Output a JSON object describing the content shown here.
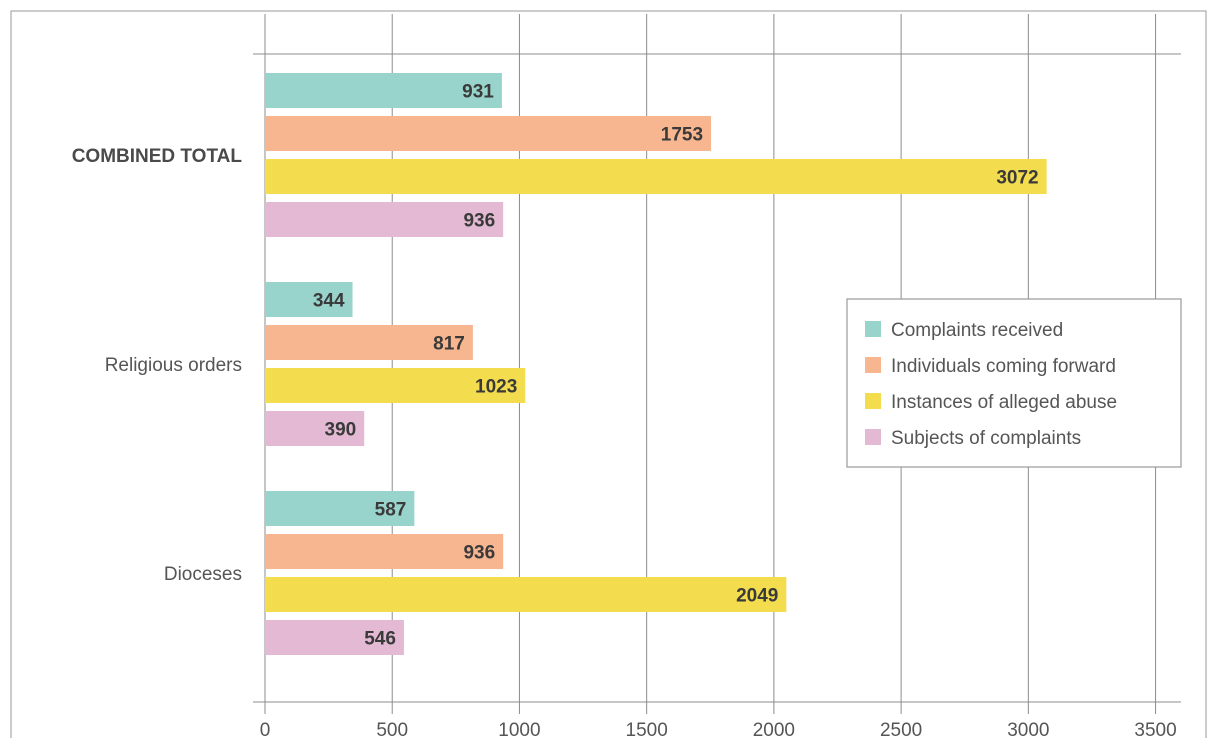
{
  "colors": {
    "complaints_received": "#99d4cc",
    "individuals_coming_forward": "#f7b590",
    "instances_of_alleged_abuse": "#f3dc4e",
    "subjects_of_complaints": "#e3b9d3"
  },
  "chart_data": {
    "type": "bar",
    "orientation": "horizontal",
    "categories": [
      "COMBINED TOTAL",
      "Religious orders",
      "Dioceses"
    ],
    "category_bold": [
      true,
      false,
      false
    ],
    "series": [
      {
        "name": "Complaints received",
        "color": "#99d4cc",
        "values": [
          931,
          344,
          587
        ]
      },
      {
        "name": "Individuals coming forward",
        "color": "#f7b590",
        "values": [
          1753,
          817,
          936
        ]
      },
      {
        "name": "Instances of alleged abuse",
        "color": "#f3dc4e",
        "values": [
          3072,
          1023,
          2049
        ]
      },
      {
        "name": "Subjects of complaints",
        "color": "#e3b9d3",
        "values": [
          936,
          390,
          546
        ]
      }
    ],
    "xlim": [
      0,
      3600
    ],
    "xticks": [
      "0",
      "500",
      "1000",
      "1500",
      "2000",
      "2500",
      "3000",
      "3500"
    ],
    "grid": true,
    "legend_position": "right",
    "title": "",
    "xlabel": "",
    "ylabel": ""
  }
}
